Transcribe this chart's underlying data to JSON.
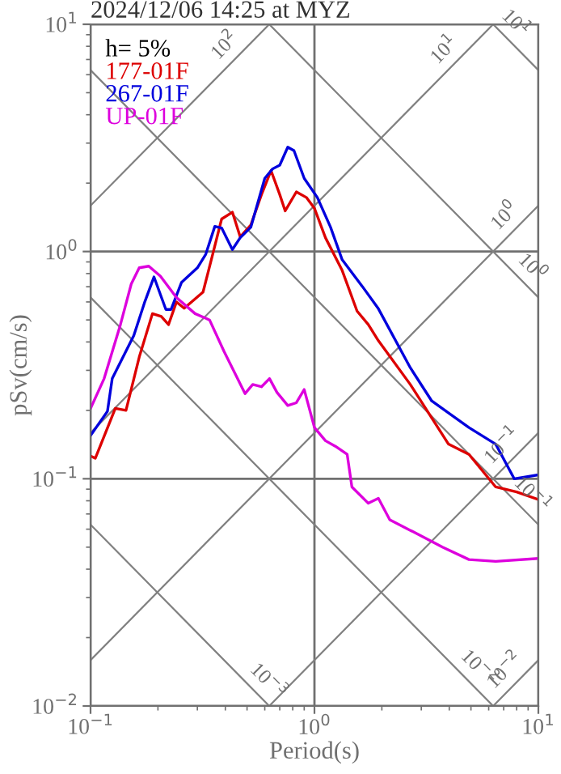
{
  "chart_data": {
    "type": "line",
    "title": "2024/12/06 14:25 at MYZ",
    "xlabel": "Period(s)",
    "ylabel": "pSv(cm/s)",
    "legend_title": "h= 5%",
    "legend": "top left",
    "log": "xy",
    "grid": true,
    "xlim": [
      0.1,
      10
    ],
    "ylim": [
      0.01,
      10
    ],
    "xticks": [
      {
        "value": 0.1,
        "label": "10$^{−1}$"
      },
      {
        "value": 1,
        "label": "10$^{0}$"
      },
      {
        "value": 10,
        "label": "10$^{1}$"
      }
    ],
    "yticks": [
      {
        "value": 0.01,
        "label": "10$^{−2}$"
      },
      {
        "value": 0.1,
        "label": "10$^{−1}$"
      },
      {
        "value": 1,
        "label": "10$^{0}$"
      },
      {
        "value": 10,
        "label": "10$^{1}$"
      }
    ],
    "annotations": [
      {
        "text": "10$^{2}$",
        "x": 0.45,
        "y": 7.162
      },
      {
        "text": "10$^{1}$",
        "x": 4.3,
        "y": 6.844
      },
      {
        "text": "10$^{1}$",
        "x": 7.0,
        "y": 8.976
      },
      {
        "text": "10$^{0}$",
        "x": 8.0,
        "y": 1.273
      },
      {
        "text": "10$^{0}$",
        "x": 8.3,
        "y": 0.757
      },
      {
        "text": "10$^{−1}$",
        "x": 7.8,
        "y": 0.1241
      },
      {
        "text": "10$^{−1}$",
        "x": 8.3,
        "y": 0.0757
      },
      {
        "text": "10$^{−2}$",
        "x": 8.0,
        "y": 0.01273
      },
      {
        "text": "10$^{−2}$",
        "x": 4.8,
        "y": 0.01309
      },
      {
        "text": "10$^{−3}$",
        "x": 0.55,
        "y": 0.01142
      }
    ],
    "series": [
      {
        "color": "#808080",
        "x": [
          0.1,
          0.6283
        ],
        "values": [
          1.592,
          10
        ]
      },
      {
        "color": "#808080",
        "x": [
          0.1,
          6.283
        ],
        "values": [
          0.1592,
          10
        ]
      },
      {
        "color": "#808080",
        "x": [
          0.1,
          10
        ],
        "values": [
          0.01592,
          1.592
        ]
      },
      {
        "color": "#808080",
        "x": [
          0.6283,
          10
        ],
        "values": [
          0.01,
          0.1592
        ]
      },
      {
        "color": "#808080",
        "x": [
          6.283,
          10
        ],
        "values": [
          0.01,
          0.01592
        ]
      },
      {
        "color": "#808080",
        "x": [
          6.283,
          10
        ],
        "values": [
          10,
          6.283
        ]
      },
      {
        "color": "#808080",
        "x": [
          0.6283,
          10
        ],
        "values": [
          10,
          0.6283
        ]
      },
      {
        "color": "#808080",
        "x": [
          0.1,
          10
        ],
        "values": [
          6.283,
          0.06283
        ]
      },
      {
        "color": "#808080",
        "x": [
          0.1,
          6.283
        ],
        "values": [
          0.6283,
          0.01
        ]
      },
      {
        "color": "#808080",
        "x": [
          0.1,
          0.6283
        ],
        "values": [
          0.06283,
          0.01
        ]
      },
      {
        "name": "177-01F",
        "color": "#dd0000",
        "x": [
          0.1,
          0.105,
          0.129,
          0.144,
          0.165,
          0.189,
          0.207,
          0.223,
          0.242,
          0.262,
          0.318,
          0.351,
          0.385,
          0.43,
          0.466,
          0.52,
          0.58,
          0.64,
          0.7,
          0.74,
          0.83,
          0.92,
          1.0,
          1.12,
          1.33,
          1.55,
          1.74,
          1.93,
          2.68,
          3.97,
          4.9,
          6.45,
          8.0,
          10
        ],
        "values": [
          0.126,
          0.123,
          0.204,
          0.2,
          0.343,
          0.533,
          0.518,
          0.477,
          0.6,
          0.563,
          0.663,
          0.97,
          1.39,
          1.49,
          1.16,
          1.31,
          1.78,
          2.27,
          1.78,
          1.51,
          1.83,
          1.73,
          1.55,
          1.15,
          0.825,
          0.547,
          0.477,
          0.405,
          0.26,
          0.142,
          0.128,
          0.092,
          0.0875,
          0.081
        ]
      },
      {
        "name": "267-01F",
        "color": "#0000dd",
        "x": [
          0.1,
          0.119,
          0.125,
          0.156,
          0.174,
          0.192,
          0.217,
          0.229,
          0.255,
          0.3,
          0.327,
          0.359,
          0.385,
          0.43,
          0.466,
          0.52,
          0.6,
          0.65,
          0.7,
          0.76,
          0.81,
          0.9,
          1.03,
          1.18,
          1.33,
          1.64,
          1.93,
          2.68,
          3.34,
          4.9,
          6.45,
          7.8,
          10
        ],
        "values": [
          0.155,
          0.198,
          0.276,
          0.427,
          0.594,
          0.773,
          0.556,
          0.556,
          0.732,
          0.848,
          0.973,
          1.29,
          1.27,
          1.02,
          1.15,
          1.28,
          2.1,
          2.31,
          2.4,
          2.88,
          2.78,
          2.1,
          1.73,
          1.28,
          0.92,
          0.7,
          0.56,
          0.308,
          0.22,
          0.168,
          0.142,
          0.1,
          0.104
        ]
      },
      {
        "name": "UP-01F",
        "color": "#dd00dd",
        "x": [
          0.1,
          0.115,
          0.136,
          0.152,
          0.165,
          0.182,
          0.205,
          0.242,
          0.293,
          0.34,
          0.395,
          0.49,
          0.53,
          0.58,
          0.63,
          0.68,
          0.76,
          0.83,
          0.9,
          1.0,
          1.12,
          1.24,
          1.4,
          1.47,
          1.74,
          1.93,
          2.17,
          3.0,
          3.73,
          4.9,
          6.45,
          10
        ],
        "values": [
          0.204,
          0.276,
          0.477,
          0.72,
          0.848,
          0.862,
          0.78,
          0.627,
          0.533,
          0.5,
          0.363,
          0.237,
          0.26,
          0.254,
          0.276,
          0.24,
          0.21,
          0.216,
          0.247,
          0.168,
          0.147,
          0.139,
          0.128,
          0.092,
          0.078,
          0.082,
          0.066,
          0.056,
          0.05,
          0.0441,
          0.0433,
          0.0446
        ]
      }
    ]
  }
}
